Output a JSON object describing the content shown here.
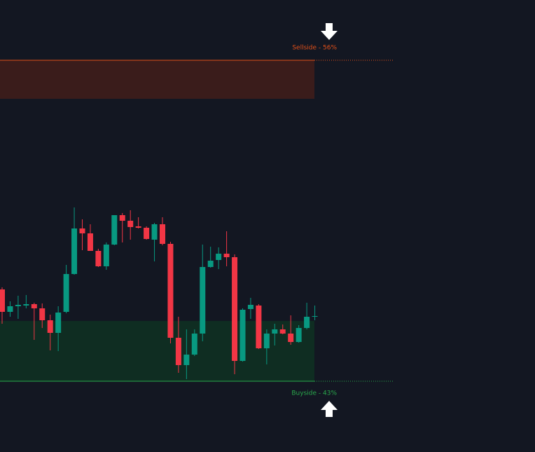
{
  "chart_data": {
    "type": "candlestick",
    "ylim": [
      0,
      645
    ],
    "up_color": "#089981",
    "down_color": "#f23645",
    "sellside": {
      "label": "Sellside - 56%",
      "top": 559,
      "bottom": 504,
      "color": "#e0501a",
      "zone_color": "#3a1c1b"
    },
    "buyside": {
      "label": "Buyside - 43%",
      "top": 187,
      "bottom": 101,
      "color": "#2aa84c",
      "zone_color": "#0f2d22"
    },
    "open": [
      232,
      200,
      208,
      209,
      211,
      205,
      188,
      170,
      200,
      254,
      319,
      312,
      287,
      265,
      296,
      338,
      330,
      322,
      320,
      303,
      325,
      297,
      163,
      124,
      139,
      169,
      264,
      274,
      283,
      278,
      130,
      204,
      209,
      148,
      169,
      175,
      169,
      157,
      177,
      193
    ],
    "close": [
      200,
      208,
      210,
      211,
      205,
      188,
      170,
      199,
      254,
      319,
      312,
      287,
      265,
      296,
      338,
      330,
      321,
      320,
      304,
      325,
      297,
      163,
      124,
      139,
      169,
      264,
      273,
      283,
      278,
      130,
      203,
      210,
      148,
      169,
      175,
      169,
      157,
      177,
      193,
      194
    ],
    "high": [
      235,
      215,
      223,
      224,
      213,
      212,
      196,
      208,
      267,
      349,
      332,
      325,
      290,
      299,
      338,
      341,
      345,
      335,
      322,
      327,
      335,
      300,
      193,
      175,
      175,
      296,
      293,
      292,
      315,
      282,
      205,
      220,
      211,
      175,
      183,
      182,
      195,
      181,
      213,
      209
    ],
    "low": [
      183,
      193,
      190,
      205,
      160,
      177,
      145,
      144,
      198,
      253,
      288,
      287,
      264,
      260,
      295,
      299,
      303,
      319,
      303,
      272,
      295,
      155,
      113,
      104,
      137,
      158,
      263,
      261,
      265,
      111,
      129,
      190,
      147,
      125,
      152,
      168,
      153,
      156,
      175,
      188
    ]
  }
}
